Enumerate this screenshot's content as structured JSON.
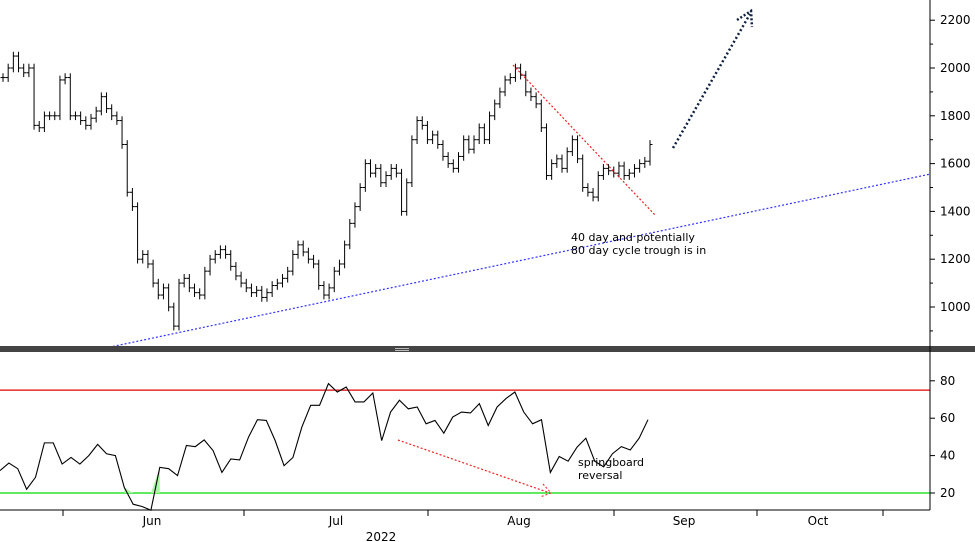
{
  "chart_data": [
    {
      "type": "bar",
      "subtype": "ohlc",
      "title": "",
      "ylim": [
        830,
        2260
      ],
      "yticks": [
        1000,
        1200,
        1400,
        1600,
        1800,
        2000,
        2200
      ],
      "closes": [
        1960,
        2000,
        2050,
        2000,
        1980,
        2000,
        1760,
        1750,
        1800,
        1800,
        1800,
        1950,
        1960,
        1800,
        1800,
        1780,
        1760,
        1790,
        1820,
        1880,
        1830,
        1800,
        1780,
        1680,
        1480,
        1420,
        1200,
        1220,
        1180,
        1100,
        1050,
        1080,
        1000,
        920,
        1100,
        1120,
        1080,
        1060,
        1050,
        1150,
        1200,
        1220,
        1240,
        1220,
        1170,
        1130,
        1100,
        1080,
        1060,
        1070,
        1040,
        1060,
        1090,
        1100,
        1120,
        1150,
        1220,
        1260,
        1230,
        1200,
        1180,
        1090,
        1050,
        1080,
        1150,
        1180,
        1260,
        1350,
        1420,
        1500,
        1600,
        1560,
        1580,
        1520,
        1550,
        1580,
        1560,
        1400,
        1520,
        1700,
        1780,
        1760,
        1700,
        1720,
        1680,
        1630,
        1600,
        1580,
        1630,
        1700,
        1660,
        1700,
        1750,
        1700,
        1800,
        1850,
        1900,
        1950,
        1960,
        2000,
        1970,
        1900,
        1880,
        1850,
        1750,
        1550,
        1600,
        1620,
        1580,
        1650,
        1700,
        1620,
        1500,
        1480,
        1460,
        1550,
        1580,
        1570,
        1560,
        1590,
        1550,
        1560,
        1580,
        1600,
        1610,
        1680
      ],
      "trendline": {
        "color": "#3333ff",
        "from_price": 828,
        "to_price": 1556
      },
      "annotations": [
        {
          "text_line1": "40 day and potentially",
          "text_line2": "80 day cycle trough is in"
        }
      ]
    },
    {
      "type": "line",
      "name": "RSI",
      "ylim": [
        10,
        95
      ],
      "yticks": [
        20,
        40,
        60,
        80
      ],
      "levels": [
        {
          "value": 75,
          "color": "#dd0000"
        },
        {
          "value": 20,
          "color": "#00dd00"
        }
      ],
      "values": [
        32,
        36,
        33,
        22,
        28.4,
        46.8,
        46.8,
        35.5,
        39,
        35.5,
        40,
        46,
        41,
        40,
        23,
        14,
        12.8,
        10.8,
        33.7,
        33,
        29.3,
        45.4,
        44.8,
        48.4,
        42.7,
        31,
        38.2,
        37.7,
        49.9,
        59.2,
        58.8,
        48,
        34.6,
        39,
        55.2,
        66.9,
        66.9,
        78.5,
        74,
        76.7,
        68.7,
        68.7,
        73.5,
        48,
        63.3,
        69.6,
        65,
        66,
        57,
        58.8,
        52,
        60.6,
        63.3,
        62.8,
        67.8,
        56.1,
        66,
        70.5,
        74,
        63.3,
        57,
        59.2,
        31,
        39.5,
        37,
        44.5,
        49.3,
        37,
        34,
        41,
        44.8,
        43,
        49.3,
        59.2
      ],
      "annotation": {
        "text_line1": "springboard",
        "text_line2": "reversal"
      }
    }
  ],
  "xaxis": {
    "months": [
      "Jun",
      "Jul",
      "Aug",
      "Sep",
      "Oct"
    ],
    "year": "2022"
  }
}
